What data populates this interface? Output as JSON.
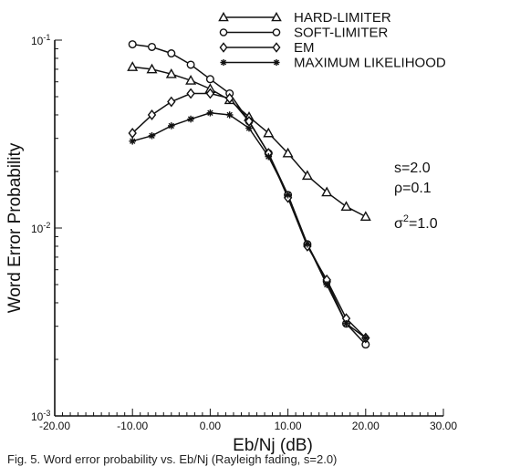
{
  "chart_data": {
    "type": "line",
    "title": "",
    "xlabel": "Eb/Nj (dB)",
    "ylabel": "Word Error Probability",
    "xlim": [
      -20,
      30
    ],
    "ylim": [
      0.001,
      0.1
    ],
    "yscale": "log",
    "grid": false,
    "legend_position": "top-right",
    "x_ticks": [
      "-20.00",
      "-10.00",
      "0.00",
      "10.00",
      "20.00",
      "30.00"
    ],
    "y_ticks": [
      {
        "base": "10",
        "exp": "-3",
        "value": 0.001
      },
      {
        "base": "10",
        "exp": "-2",
        "value": 0.01
      },
      {
        "base": "10",
        "exp": "-1",
        "value": 0.1
      }
    ],
    "series": [
      {
        "name": "HARD-LIMITER",
        "marker": "triangle",
        "x": [
          -10,
          -7.5,
          -5,
          -2.5,
          0,
          2.5,
          5,
          7.5,
          10,
          12.5,
          15,
          17.5,
          20
        ],
        "y": [
          0.072,
          0.07,
          0.066,
          0.061,
          0.055,
          0.048,
          0.039,
          0.032,
          0.025,
          0.019,
          0.0155,
          0.013,
          0.0115
        ]
      },
      {
        "name": "SOFT-LIMITER",
        "marker": "circle",
        "x": [
          -10,
          -7.5,
          -5,
          -2.5,
          0,
          2.5,
          5,
          7.5,
          10,
          12.5,
          15,
          17.5,
          20
        ],
        "y": [
          0.095,
          0.092,
          0.085,
          0.074,
          0.062,
          0.052,
          0.037,
          0.025,
          0.015,
          0.0082,
          0.0052,
          0.0031,
          0.0024
        ]
      },
      {
        "name": "EM",
        "marker": "diamond",
        "x": [
          -10,
          -7.5,
          -5,
          -2.5,
          0,
          2.5,
          5,
          7.5,
          10,
          12.5,
          15,
          17.5,
          20
        ],
        "y": [
          0.032,
          0.04,
          0.047,
          0.052,
          0.052,
          0.049,
          0.037,
          0.025,
          0.0145,
          0.008,
          0.0053,
          0.0033,
          0.0026
        ]
      },
      {
        "name": "MAXIMUM LIKELIHOOD",
        "marker": "star",
        "x": [
          -10,
          -7.5,
          -5,
          -2.5,
          0,
          2.5,
          5,
          7.5,
          10,
          12.5,
          15,
          17.5,
          20
        ],
        "y": [
          0.029,
          0.031,
          0.035,
          0.038,
          0.041,
          0.04,
          0.034,
          0.024,
          0.015,
          0.0082,
          0.005,
          0.0031,
          0.0026
        ]
      }
    ],
    "annotations": {
      "s": "s=2.0",
      "rho": "ρ=0.1",
      "sigma_base": "σ",
      "sigma_exp": "2",
      "sigma_rest": "=1.0"
    },
    "caption": "Fig. 5. Word error probability vs. Eb/Nj (Rayleigh fading, s=2.0)"
  }
}
